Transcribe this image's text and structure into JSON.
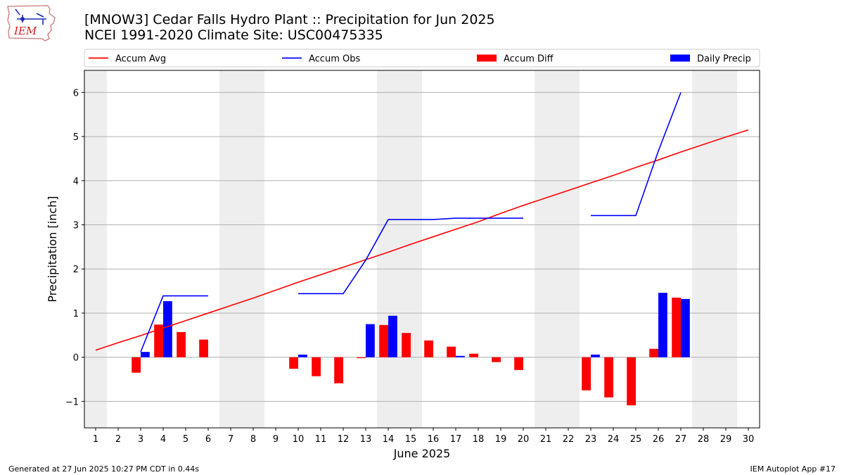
{
  "header": {
    "title": "[MNOW3] Cedar Falls Hydro Plant :: Precipitation for Jun 2025",
    "subtitle": "NCEI 1991-2020 Climate Site: USC00475335",
    "logo_text": "IEM"
  },
  "footer": {
    "left": "Generated at 27 Jun 2025 10:27 PM CDT in 0.44s",
    "right": "IEM Autoplot App #17"
  },
  "chart_data": {
    "type": "bar",
    "xlabel": "June 2025",
    "ylabel": "Precipitation [inch]",
    "xlim": [
      0.5,
      30.5
    ],
    "ylim": [
      -1.6,
      6.5
    ],
    "yticks": [
      -1,
      0,
      1,
      2,
      3,
      4,
      5,
      6
    ],
    "ytick_labels": [
      "−1",
      "0",
      "1",
      "2",
      "3",
      "4",
      "5",
      "6"
    ],
    "categories": [
      "1",
      "2",
      "3",
      "4",
      "5",
      "6",
      "7",
      "8",
      "9",
      "10",
      "11",
      "12",
      "13",
      "14",
      "15",
      "16",
      "17",
      "18",
      "19",
      "20",
      "21",
      "22",
      "23",
      "24",
      "25",
      "26",
      "27",
      "28",
      "29",
      "30"
    ],
    "weekend_days": [
      1,
      7,
      8,
      14,
      15,
      21,
      22,
      28,
      29
    ],
    "grid": "horizontal",
    "legend": {
      "placement": "top",
      "entries": [
        {
          "label": "Accum Avg",
          "kind": "line",
          "color": "#ff0000"
        },
        {
          "label": "Accum Obs",
          "kind": "line",
          "color": "#0000ff"
        },
        {
          "label": "Accum Diff",
          "kind": "bar",
          "color": "#ff0000"
        },
        {
          "label": "Daily Precip",
          "kind": "bar",
          "color": "#0000ff"
        }
      ]
    },
    "series": [
      {
        "name": "Accum Avg",
        "kind": "line",
        "color": "#ff0000",
        "x": [
          1,
          2,
          3,
          4,
          5,
          6,
          7,
          8,
          9,
          10,
          11,
          12,
          13,
          14,
          15,
          16,
          17,
          18,
          19,
          20,
          21,
          22,
          23,
          24,
          25,
          26,
          27,
          28,
          29,
          30
        ],
        "values": [
          0.16,
          0.33,
          0.49,
          0.66,
          0.83,
          1.0,
          1.17,
          1.34,
          1.52,
          1.7,
          1.87,
          2.04,
          2.21,
          2.38,
          2.56,
          2.73,
          2.9,
          3.07,
          3.26,
          3.44,
          3.61,
          3.78,
          3.95,
          4.12,
          4.3,
          4.47,
          4.65,
          4.82,
          4.99,
          5.15
        ]
      },
      {
        "name": "Accum Obs",
        "kind": "line",
        "color": "#0000ff",
        "segments": [
          {
            "x": [
              3,
              4,
              5,
              6
            ],
            "values": [
              0.12,
              1.39,
              1.39,
              1.39
            ]
          },
          {
            "x": [
              10,
              11,
              12,
              13,
              14,
              15,
              16,
              17,
              18,
              19,
              20
            ],
            "values": [
              1.44,
              1.44,
              1.44,
              2.2,
              3.12,
              3.12,
              3.12,
              3.15,
              3.15,
              3.15,
              3.15
            ]
          },
          {
            "x": [
              23,
              24,
              25,
              26,
              27
            ],
            "values": [
              3.21,
              3.21,
              3.21,
              4.67,
              6.0
            ]
          }
        ]
      },
      {
        "name": "Accum Diff",
        "kind": "bar",
        "color": "#ff0000",
        "x": [
          3,
          4,
          5,
          6,
          10,
          11,
          12,
          13,
          14,
          15,
          16,
          17,
          18,
          19,
          20,
          23,
          24,
          25,
          26,
          27
        ],
        "values": [
          -0.35,
          0.74,
          0.57,
          0.4,
          -0.26,
          -0.43,
          -0.59,
          -0.02,
          0.73,
          0.55,
          0.38,
          0.24,
          0.08,
          -0.11,
          -0.29,
          -0.75,
          -0.91,
          -1.09,
          0.19,
          1.35
        ]
      },
      {
        "name": "Daily Precip",
        "kind": "bar",
        "color": "#0000ff",
        "x": [
          3,
          4,
          10,
          13,
          14,
          17,
          23,
          26,
          27
        ],
        "values": [
          0.12,
          1.27,
          0.06,
          0.75,
          0.94,
          0.03,
          0.06,
          1.46,
          1.32
        ]
      }
    ]
  }
}
